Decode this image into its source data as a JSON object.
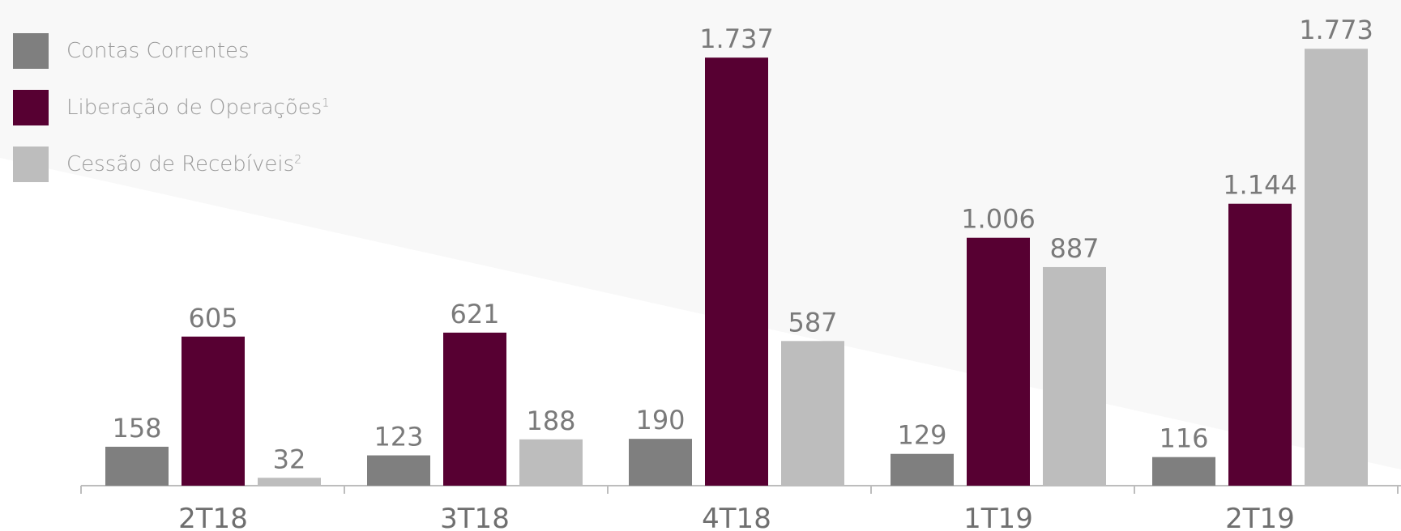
{
  "legend": [
    {
      "label": "Contas Correntes",
      "sup": "",
      "color": "#7f7f7f"
    },
    {
      "label": "Liberação de Operações",
      "sup": "1",
      "color": "#570032"
    },
    {
      "label": "Cessão de Recebíveis",
      "sup": "2",
      "color": "#bdbdbd"
    }
  ],
  "chart_data": {
    "type": "bar",
    "categories": [
      "2T18",
      "3T18",
      "4T18",
      "1T19",
      "2T19"
    ],
    "series": [
      {
        "name": "Contas Correntes",
        "values": [
          158,
          123,
          190,
          129,
          116
        ],
        "labels": [
          "158",
          "123",
          "190",
          "129",
          "116"
        ],
        "color": "#7f7f7f"
      },
      {
        "name": "Liberação de Operações",
        "values": [
          605,
          621,
          1737,
          1006,
          1144
        ],
        "labels": [
          "605",
          "621",
          "1.737",
          "1.006",
          "1.144"
        ],
        "color": "#570032"
      },
      {
        "name": "Cessão de Recebíveis",
        "values": [
          32,
          188,
          587,
          887,
          1773
        ],
        "labels": [
          "32",
          "188",
          "587",
          "887",
          "1.773"
        ],
        "color": "#bdbdbd"
      }
    ],
    "ylim": [
      0,
      1800
    ],
    "grid": false,
    "legend_position": "top-left",
    "background": "#f8f8f8"
  }
}
